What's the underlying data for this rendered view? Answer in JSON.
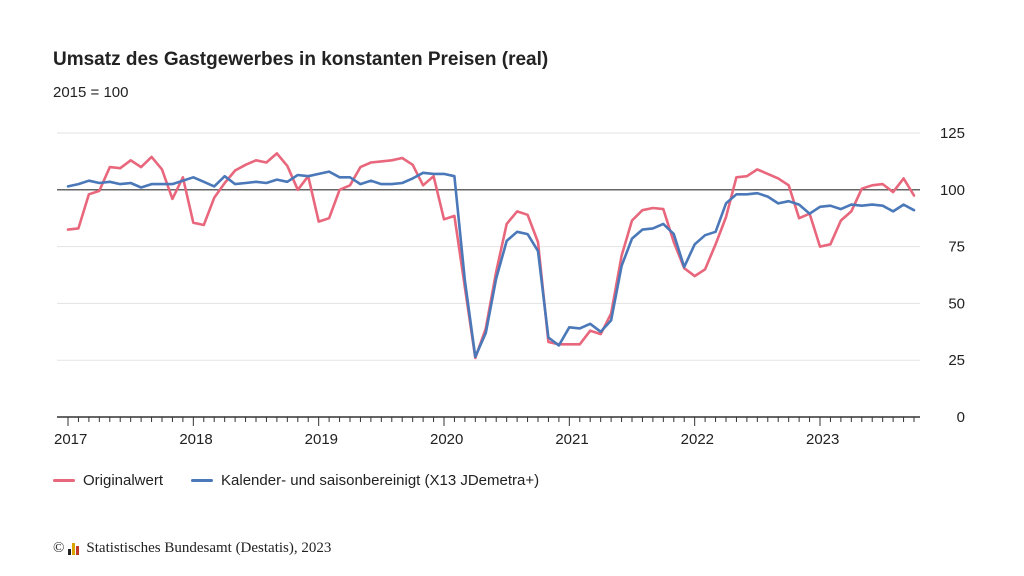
{
  "title": "Umsatz des Gastgewerbes in konstanten Preisen (real)",
  "subtitle": "2015 = 100",
  "footer": {
    "copyright": "©",
    "source": "Statistisches Bundesamt (Destatis), 2023"
  },
  "colors": {
    "original": "#e8677c",
    "adjusted": "#4a78b8",
    "axis": "#333333",
    "grid": "#e3e3e3"
  },
  "chart_data": {
    "type": "line",
    "title": "Umsatz des Gastgewerbes in konstanten Preisen (real)",
    "subtitle": "2015 = 100",
    "ylim": [
      0,
      125
    ],
    "yticks": [
      0,
      25,
      50,
      75,
      100,
      125
    ],
    "reference_line": 100,
    "grid": true,
    "legend_position": "bottom-left",
    "x_start": "2017-01",
    "x_tick_labels": [
      "2017",
      "2018",
      "2019",
      "2020",
      "2021",
      "2022",
      "2023"
    ],
    "series": [
      {
        "name": "Originalwert",
        "color": "#e8677c",
        "values": [
          82.5,
          83,
          98,
          99.5,
          110,
          109.5,
          113,
          110,
          114.5,
          109,
          96,
          105.5,
          85.5,
          84.5,
          96.5,
          103,
          108.5,
          111,
          113,
          112,
          116,
          110.5,
          100,
          106,
          86,
          87.5,
          100,
          102,
          110,
          112,
          112.5,
          113,
          114,
          111,
          102,
          106,
          87,
          88.5,
          57,
          26,
          39,
          64,
          85,
          90.5,
          89,
          77,
          33,
          32,
          32,
          32,
          38,
          36.5,
          45.5,
          71,
          86.5,
          91,
          92,
          91.5,
          77,
          65.5,
          62,
          65,
          76,
          88,
          105.5,
          106,
          109,
          107,
          105,
          102,
          87.5,
          89.5,
          75,
          76,
          86.5,
          90.5,
          100.5,
          102,
          102.5,
          99,
          105,
          97.5
        ]
      },
      {
        "name": "Kalender- und saisonbereinigt (X13 JDemetra+)",
        "color": "#4a78b8",
        "values": [
          101.5,
          102.5,
          104,
          103,
          103.5,
          102.5,
          103,
          101,
          102.5,
          102.5,
          102.5,
          104,
          105.5,
          103.5,
          101.5,
          106,
          102.5,
          103,
          103.5,
          103,
          104.5,
          103.5,
          106.5,
          106,
          107,
          108,
          105.5,
          105.5,
          102.5,
          104,
          102.5,
          102.5,
          103,
          105,
          107.5,
          107,
          107,
          106,
          60,
          26.5,
          37,
          61,
          77.5,
          81.5,
          80.5,
          73,
          35,
          31.5,
          39.5,
          39,
          41,
          37.5,
          42.5,
          66.5,
          78.5,
          82.5,
          83,
          85,
          80.5,
          66,
          76,
          80,
          81.5,
          94,
          98,
          98,
          98.5,
          97,
          94,
          95,
          93.5,
          89.5,
          92.5,
          93,
          91.5,
          93.5,
          93,
          93.5,
          93,
          90.5,
          93.5,
          91
        ]
      }
    ]
  }
}
